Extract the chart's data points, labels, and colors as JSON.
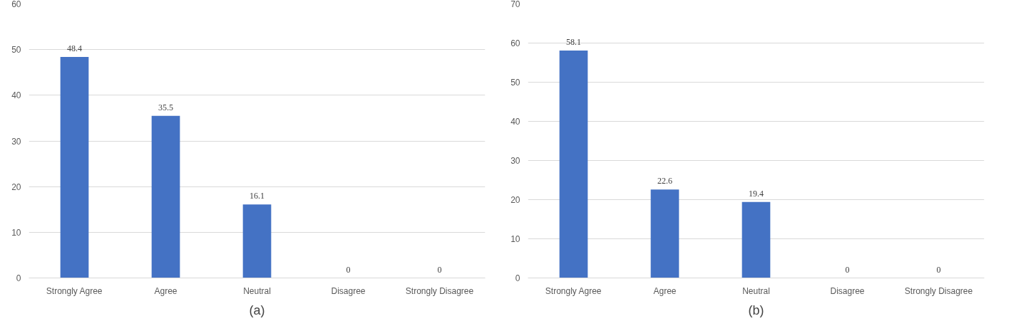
{
  "chart_data": [
    {
      "type": "bar",
      "categories": [
        "Strongly Agree",
        "Agree",
        "Neutral",
        "Disagree",
        "Strongly Disagree"
      ],
      "values": [
        48.4,
        35.5,
        16.1,
        0,
        0
      ],
      "color": "#4472c4",
      "ylim": [
        0,
        60
      ],
      "yticks": [
        0,
        10,
        20,
        30,
        40,
        50,
        60
      ],
      "grid": "y",
      "data_labels": true,
      "legend": false,
      "annotations": [
        "(a)"
      ]
    },
    {
      "type": "bar",
      "categories": [
        "Strongly Agree",
        "Agree",
        "Neutral",
        "Disagree",
        "Strongly Disagree"
      ],
      "values": [
        58.1,
        22.6,
        19.4,
        0,
        0
      ],
      "color": "#4472c4",
      "ylim": [
        0,
        70
      ],
      "yticks": [
        0,
        10,
        20,
        30,
        40,
        50,
        60,
        70
      ],
      "grid": "y",
      "data_labels": true,
      "legend": false,
      "annotations": [
        "(b)"
      ]
    }
  ]
}
